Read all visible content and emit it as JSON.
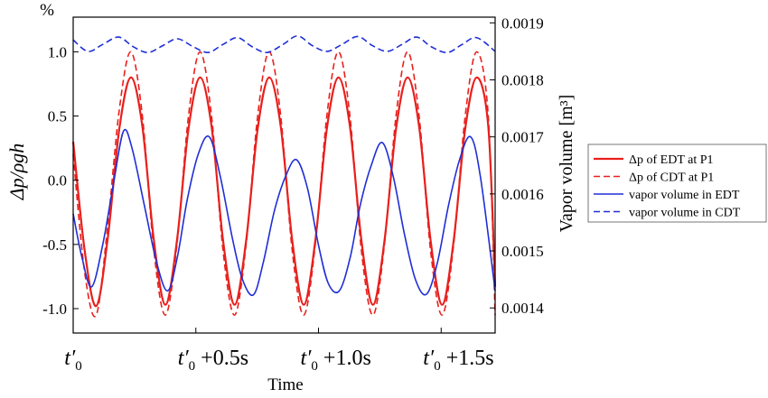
{
  "chart_data": {
    "type": "line",
    "xlabel": "Time",
    "ylabel_left": "Δp/ρgh",
    "ylabel_left_unit": "%",
    "ylabel_right": "Vapor volume  [m³]",
    "x_ticks": [
      {
        "value": 0.0,
        "base": "t′",
        "sub": "0",
        "suffix": ""
      },
      {
        "value": 0.5,
        "base": "t′",
        "sub": "0",
        "suffix": " +0.5s"
      },
      {
        "value": 1.0,
        "base": "t′",
        "sub": "0",
        "suffix": " +1.0s"
      },
      {
        "value": 1.5,
        "base": "t′",
        "sub": "0",
        "suffix": " +1.5s"
      }
    ],
    "xlim": [
      0.0,
      1.72
    ],
    "ylim_left": [
      -1.19,
      1.27
    ],
    "ylim_right": [
      0.001356,
      0.00191
    ],
    "y_ticks_left": [
      {
        "value": 1.0,
        "label": "1.0"
      },
      {
        "value": 0.5,
        "label": "0.5"
      },
      {
        "value": 0.0,
        "label": "0.0"
      },
      {
        "value": -0.5,
        "label": "-0.5"
      },
      {
        "value": -1.0,
        "label": "-1.0"
      }
    ],
    "y_ticks_right": [
      {
        "value": 0.0019,
        "label": "0.0019"
      },
      {
        "value": 0.0018,
        "label": "0.0018"
      },
      {
        "value": 0.0017,
        "label": "0.0017"
      },
      {
        "value": 0.0016,
        "label": "0.0016"
      },
      {
        "value": 0.0015,
        "label": "0.0015"
      },
      {
        "value": 0.0014,
        "label": "0.0014"
      }
    ],
    "series": [
      {
        "name": "Δp of EDT at P1",
        "axis": "left",
        "color": "#e8201c",
        "dash": "solid",
        "width": 2.2,
        "x": [
          0.0,
          0.047,
          0.094,
          0.141,
          0.188,
          0.235,
          0.282,
          0.329,
          0.376,
          0.423,
          0.47,
          0.517,
          0.564,
          0.611,
          0.658,
          0.705,
          0.752,
          0.799,
          0.846,
          0.893,
          0.94,
          0.987,
          1.034,
          1.081,
          1.128,
          1.175,
          1.222,
          1.269,
          1.316,
          1.363,
          1.41,
          1.457,
          1.504,
          1.551,
          1.598,
          1.645,
          1.692,
          1.72
        ],
        "y": [
          0.3,
          -0.55,
          -0.98,
          -0.45,
          0.4,
          0.8,
          0.42,
          -0.47,
          -0.97,
          -0.47,
          0.4,
          0.8,
          0.42,
          -0.47,
          -0.97,
          -0.47,
          0.4,
          0.8,
          0.42,
          -0.47,
          -0.97,
          -0.47,
          0.4,
          0.8,
          0.42,
          -0.47,
          -0.97,
          -0.47,
          0.4,
          0.8,
          0.42,
          -0.47,
          -0.97,
          -0.47,
          0.4,
          0.8,
          0.42,
          -0.83
        ]
      },
      {
        "name": "Δp of CDT at P1",
        "axis": "left",
        "color": "#e8201c",
        "dash": "dashed",
        "width": 1.6,
        "x": [
          0.0,
          0.047,
          0.094,
          0.141,
          0.188,
          0.235,
          0.282,
          0.329,
          0.376,
          0.423,
          0.47,
          0.517,
          0.564,
          0.611,
          0.658,
          0.705,
          0.752,
          0.799,
          0.846,
          0.893,
          0.94,
          0.987,
          1.034,
          1.081,
          1.128,
          1.175,
          1.222,
          1.269,
          1.316,
          1.363,
          1.41,
          1.457,
          1.504,
          1.551,
          1.598,
          1.645,
          1.692,
          1.72
        ],
        "y": [
          0.2,
          -0.72,
          -1.05,
          -0.35,
          0.55,
          1.0,
          0.5,
          -0.55,
          -1.05,
          -0.5,
          0.5,
          1.0,
          0.5,
          -0.55,
          -1.05,
          -0.5,
          0.5,
          1.0,
          0.5,
          -0.55,
          -1.05,
          -0.5,
          0.5,
          1.0,
          0.5,
          -0.55,
          -1.05,
          -0.5,
          0.5,
          1.0,
          0.5,
          -0.55,
          -1.05,
          -0.5,
          0.5,
          1.0,
          0.5,
          -1.05
        ]
      },
      {
        "name": "vapor volume in EDT",
        "axis": "right",
        "color": "#1f2fd6",
        "dash": "solid",
        "width": 1.6,
        "x": [
          0.0,
          0.035,
          0.075,
          0.12,
          0.165,
          0.205,
          0.24,
          0.29,
          0.34,
          0.385,
          0.425,
          0.465,
          0.51,
          0.555,
          0.6,
          0.65,
          0.69,
          0.735,
          0.775,
          0.82,
          0.865,
          0.91,
          0.955,
          1.0,
          1.04,
          1.085,
          1.13,
          1.17,
          1.215,
          1.26,
          1.305,
          1.35,
          1.395,
          1.44,
          1.485,
          1.53,
          1.575,
          1.62,
          1.66,
          1.72
        ],
        "y": [
          0.001565,
          0.00149,
          0.001437,
          0.00151,
          0.00162,
          0.00171,
          0.00168,
          0.00158,
          0.00148,
          0.00143,
          0.00149,
          0.00159,
          0.00167,
          0.0017,
          0.00163,
          0.00152,
          0.00145,
          0.001423,
          0.00148,
          0.00157,
          0.00163,
          0.00166,
          0.00161,
          0.00151,
          0.001443,
          0.00143,
          0.00149,
          0.00158,
          0.00165,
          0.00169,
          0.00163,
          0.00153,
          0.00145,
          0.001424,
          0.00148,
          0.00158,
          0.00166,
          0.0017,
          0.00163,
          0.00143
        ]
      },
      {
        "name": "vapor volume in CDT",
        "axis": "right",
        "color": "#1f2fd6",
        "dash": "dashed",
        "width": 1.6,
        "x": [
          0.0,
          0.06,
          0.12,
          0.185,
          0.245,
          0.305,
          0.365,
          0.425,
          0.49,
          0.55,
          0.61,
          0.67,
          0.73,
          0.79,
          0.855,
          0.915,
          0.975,
          1.035,
          1.095,
          1.16,
          1.22,
          1.28,
          1.34,
          1.4,
          1.46,
          1.525,
          1.585,
          1.645,
          1.72
        ],
        "y": [
          0.00187,
          0.00185,
          0.001862,
          0.001875,
          0.001858,
          0.001848,
          0.00186,
          0.001872,
          0.001858,
          0.001848,
          0.001862,
          0.001874,
          0.001858,
          0.001848,
          0.001862,
          0.001877,
          0.00186,
          0.00185,
          0.001862,
          0.001876,
          0.00186,
          0.00185,
          0.001862,
          0.001875,
          0.001858,
          0.001848,
          0.001862,
          0.001874,
          0.00185
        ]
      }
    ],
    "legend_position": "right",
    "grid": false
  }
}
